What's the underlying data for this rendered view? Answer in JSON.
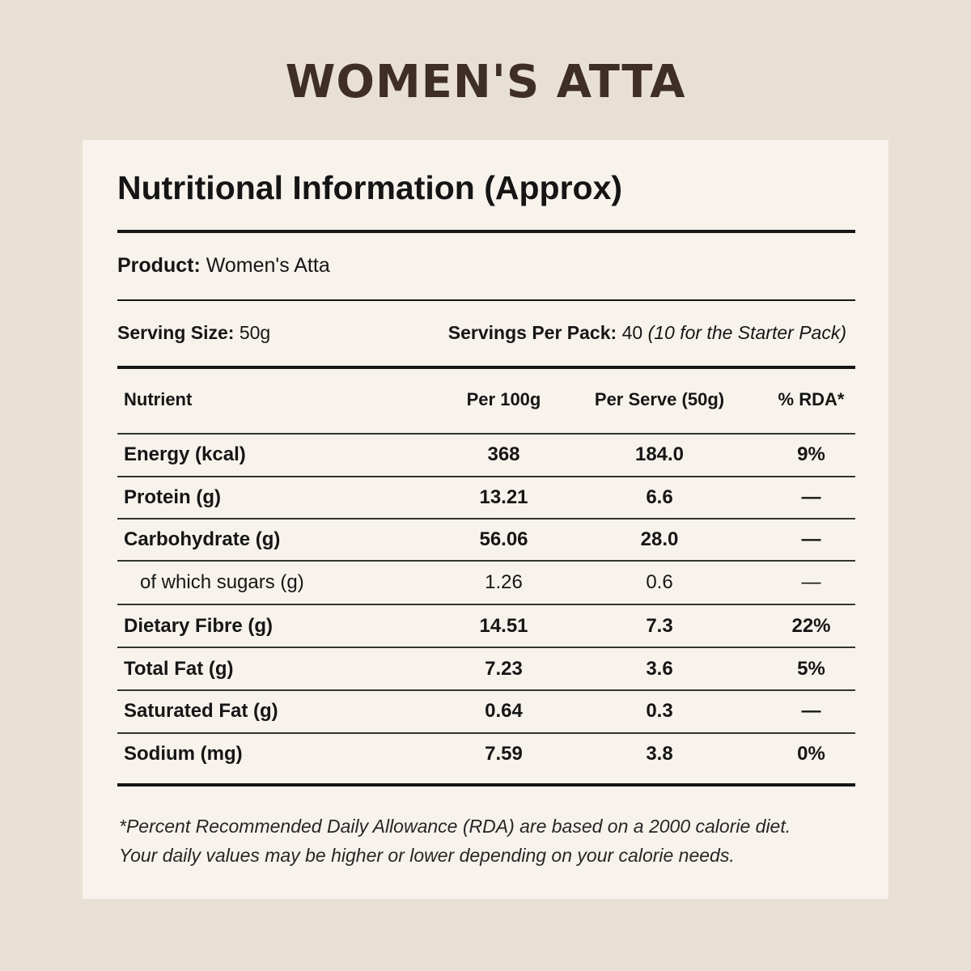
{
  "brand_title": "WOMEN'S ATTA",
  "panel": {
    "title": "Nutritional Information (Approx)",
    "product_label": "Product:",
    "product_value": "Women's Atta",
    "serving_size_label": "Serving Size:",
    "serving_size_value": "50g",
    "servings_per_pack_label": "Servings Per Pack:",
    "servings_per_pack_value": "40",
    "servings_per_pack_note": "(10 for the Starter Pack)"
  },
  "table": {
    "headers": [
      "Nutrient",
      "Per 100g",
      "Per Serve (50g)",
      "% RDA*"
    ],
    "rows": [
      {
        "nutrient": "Energy (kcal)",
        "per100": "368",
        "serve": "184.0",
        "rda": "9%"
      },
      {
        "nutrient": "Protein (g)",
        "per100": "13.21",
        "serve": "6.6",
        "rda": "—"
      },
      {
        "nutrient": "Carbohydrate (g)",
        "per100": "56.06",
        "serve": "28.0",
        "rda": "—"
      },
      {
        "nutrient": "of which sugars (g)",
        "per100": "1.26",
        "serve": "0.6",
        "rda": "—"
      },
      {
        "nutrient": "Dietary Fibre (g)",
        "per100": "14.51",
        "serve": "7.3",
        "rda": "22%"
      },
      {
        "nutrient": "Total Fat (g)",
        "per100": "7.23",
        "serve": "3.6",
        "rda": "5%"
      },
      {
        "nutrient": "Saturated Fat (g)",
        "per100": "0.64",
        "serve": "0.3",
        "rda": "—"
      },
      {
        "nutrient": "Sodium (mg)",
        "per100": "7.59",
        "serve": "3.8",
        "rda": "0%"
      }
    ]
  },
  "footnote": {
    "line1": "*Percent Recommended Daily Allowance (RDA) are based on a 2000 calorie diet.",
    "line2": "Your daily values may be higher or lower depending on your calorie needs."
  },
  "colors": {
    "background": "#e9e0d5",
    "card": "#f7f3ec",
    "brand_text": "#3f2e26",
    "text": "#151515"
  }
}
